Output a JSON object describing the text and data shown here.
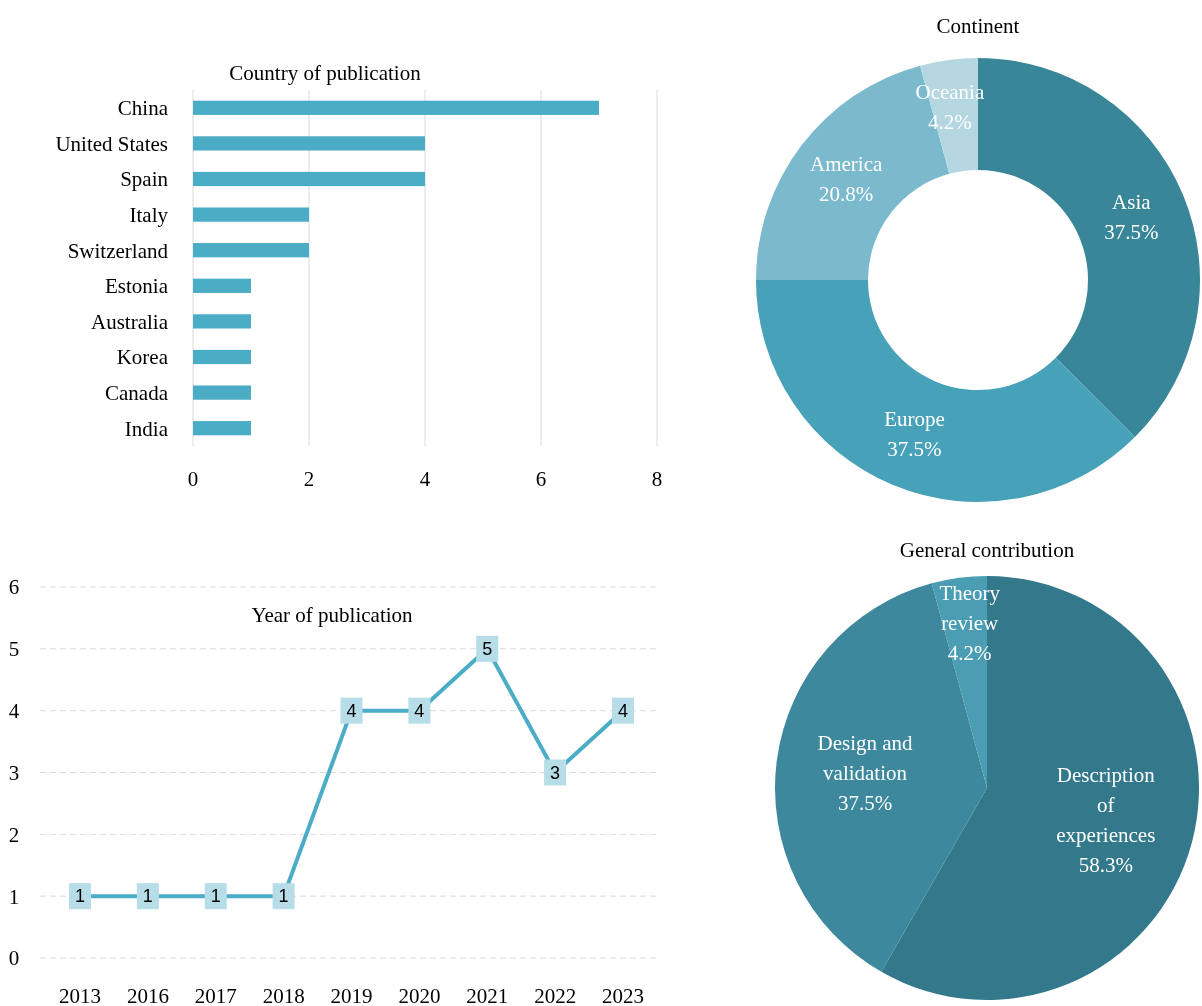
{
  "chart_data": [
    {
      "type": "bar",
      "orientation": "horizontal",
      "title": "Country of publication",
      "categories": [
        "China",
        "United States",
        "Spain",
        "Italy",
        "Switzerland",
        "Estonia",
        "Australia",
        "Korea",
        "Canada",
        "India"
      ],
      "values": [
        7,
        4,
        4,
        2,
        2,
        1,
        1,
        1,
        1,
        1
      ],
      "color": "#4bacc6",
      "xlim": [
        0,
        8
      ],
      "xticks": [
        0,
        2,
        4,
        6,
        8
      ],
      "grid": "x"
    },
    {
      "type": "donut",
      "title": "Continent",
      "categories": [
        "Asia",
        "Europe",
        "America",
        "Oceania"
      ],
      "values": [
        37.5,
        37.5,
        20.8,
        4.2
      ],
      "value_labels": [
        "37.5%",
        "37.5%",
        "20.8%",
        "4.2%"
      ],
      "colors": [
        "#3a8699",
        "#46a1b9",
        "#7bb9cd",
        "#b5d7e1"
      ]
    },
    {
      "type": "line",
      "title": "Year of publication",
      "categories": [
        "2013",
        "2016",
        "2017",
        "2018",
        "2019",
        "2020",
        "2021",
        "2022",
        "2023"
      ],
      "values": [
        1,
        1,
        1,
        1,
        4,
        4,
        5,
        3,
        4
      ],
      "color": "#4bacc6",
      "ylim": [
        0,
        6
      ],
      "yticks": [
        0,
        1,
        2,
        3,
        4,
        5,
        6
      ],
      "grid": "y",
      "data_labels": true,
      "marker": "square"
    },
    {
      "type": "pie",
      "title": "General contribution",
      "categories": [
        "Description of experiences",
        "Design and validation",
        "Theory review"
      ],
      "values": [
        58.3,
        37.5,
        4.2
      ],
      "value_labels": [
        "58.3%",
        "37.5%",
        "4.2%"
      ],
      "colors": [
        "#33798b",
        "#3d889c",
        "#4a9db3"
      ]
    }
  ]
}
